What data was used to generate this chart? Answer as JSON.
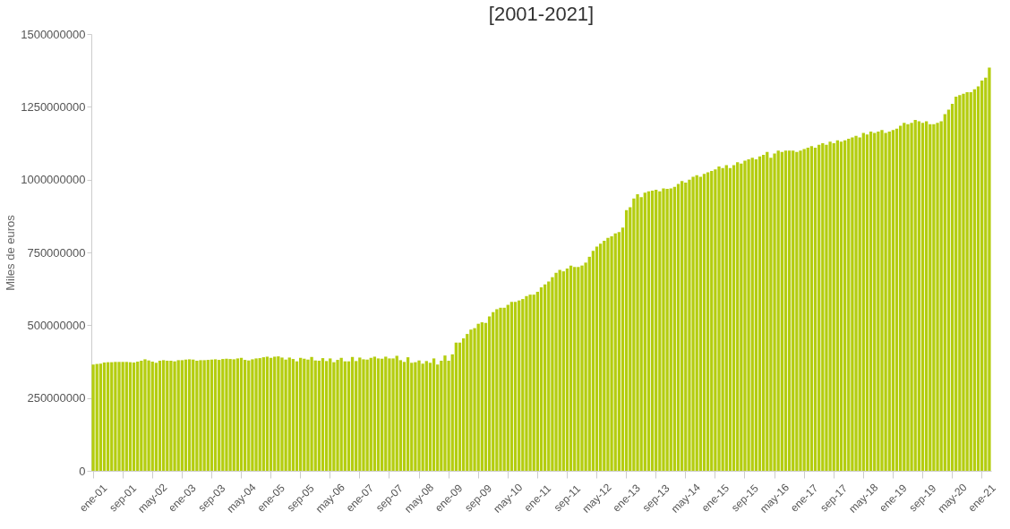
{
  "chart_data": {
    "type": "bar",
    "title": "[2001-2021]",
    "ylabel": "Miles de euros",
    "color": "#b4cd0f",
    "ylim": [
      0,
      1500000000
    ],
    "yticks": [
      0,
      250000000,
      500000000,
      750000000,
      1000000000,
      1250000000,
      1500000000
    ],
    "grid": false,
    "categories": [
      "ene-01",
      null,
      null,
      null,
      null,
      null,
      null,
      null,
      "sep-01",
      null,
      null,
      null,
      null,
      null,
      null,
      null,
      "may-02",
      null,
      null,
      null,
      null,
      null,
      null,
      null,
      "ene-03",
      null,
      null,
      null,
      null,
      null,
      null,
      null,
      "sep-03",
      null,
      null,
      null,
      null,
      null,
      null,
      null,
      "may-04",
      null,
      null,
      null,
      null,
      null,
      null,
      null,
      "ene-05",
      null,
      null,
      null,
      null,
      null,
      null,
      null,
      "sep-05",
      null,
      null,
      null,
      null,
      null,
      null,
      null,
      "may-06",
      null,
      null,
      null,
      null,
      null,
      null,
      null,
      "ene-07",
      null,
      null,
      null,
      null,
      null,
      null,
      null,
      "sep-07",
      null,
      null,
      null,
      null,
      null,
      null,
      null,
      "may-08",
      null,
      null,
      null,
      null,
      null,
      null,
      null,
      "ene-09",
      null,
      null,
      null,
      null,
      null,
      null,
      null,
      "sep-09",
      null,
      null,
      null,
      null,
      null,
      null,
      null,
      "may-10",
      null,
      null,
      null,
      null,
      null,
      null,
      null,
      "ene-11",
      null,
      null,
      null,
      null,
      null,
      null,
      null,
      "sep-11",
      null,
      null,
      null,
      null,
      null,
      null,
      null,
      "may-12",
      null,
      null,
      null,
      null,
      null,
      null,
      null,
      "ene-13",
      null,
      null,
      null,
      null,
      null,
      null,
      null,
      "sep-13",
      null,
      null,
      null,
      null,
      null,
      null,
      null,
      "may-14",
      null,
      null,
      null,
      null,
      null,
      null,
      null,
      "ene-15",
      null,
      null,
      null,
      null,
      null,
      null,
      null,
      "sep-15",
      null,
      null,
      null,
      null,
      null,
      null,
      null,
      "may-16",
      null,
      null,
      null,
      null,
      null,
      null,
      null,
      "ene-17",
      null,
      null,
      null,
      null,
      null,
      null,
      null,
      "sep-17",
      null,
      null,
      null,
      null,
      null,
      null,
      null,
      "may-18",
      null,
      null,
      null,
      null,
      null,
      null,
      null,
      "ene-19",
      null,
      null,
      null,
      null,
      null,
      null,
      null,
      "sep-19",
      null,
      null,
      null,
      null,
      null,
      null,
      null,
      "may-20",
      null,
      null,
      null,
      null,
      null,
      null,
      null,
      "ene-21",
      null,
      null
    ],
    "values": [
      365000000,
      367000000,
      368000000,
      372000000,
      373000000,
      373000000,
      374000000,
      374000000,
      374000000,
      374000000,
      373000000,
      372000000,
      375000000,
      378000000,
      383000000,
      379000000,
      375000000,
      371000000,
      378000000,
      380000000,
      378000000,
      378000000,
      376000000,
      380000000,
      380000000,
      382000000,
      383000000,
      382000000,
      378000000,
      380000000,
      380000000,
      381000000,
      382000000,
      383000000,
      381000000,
      384000000,
      385000000,
      384000000,
      383000000,
      386000000,
      388000000,
      381000000,
      379000000,
      383000000,
      386000000,
      387000000,
      390000000,
      392000000,
      388000000,
      392000000,
      393000000,
      389000000,
      382000000,
      389000000,
      384000000,
      376000000,
      388000000,
      385000000,
      382000000,
      391000000,
      379000000,
      378000000,
      387000000,
      377000000,
      386000000,
      373000000,
      381000000,
      388000000,
      376000000,
      376000000,
      391000000,
      377000000,
      389000000,
      383000000,
      382000000,
      388000000,
      392000000,
      386000000,
      385000000,
      392000000,
      386000000,
      386000000,
      395000000,
      380000000,
      374000000,
      390000000,
      371000000,
      373000000,
      379000000,
      368000000,
      377000000,
      371000000,
      386000000,
      365000000,
      378000000,
      396000000,
      378000000,
      400000000,
      440000000,
      440000000,
      455000000,
      470000000,
      485000000,
      490000000,
      505000000,
      510000000,
      508000000,
      530000000,
      545000000,
      555000000,
      560000000,
      560000000,
      570000000,
      580000000,
      580000000,
      585000000,
      590000000,
      600000000,
      605000000,
      605000000,
      615000000,
      630000000,
      640000000,
      650000000,
      665000000,
      680000000,
      690000000,
      685000000,
      695000000,
      705000000,
      700000000,
      700000000,
      705000000,
      715000000,
      735000000,
      755000000,
      770000000,
      780000000,
      790000000,
      800000000,
      805000000,
      815000000,
      820000000,
      835000000,
      895000000,
      905000000,
      935000000,
      950000000,
      940000000,
      955000000,
      960000000,
      962000000,
      965000000,
      960000000,
      970000000,
      968000000,
      970000000,
      975000000,
      985000000,
      995000000,
      990000000,
      1000000000,
      1010000000,
      1015000000,
      1010000000,
      1020000000,
      1025000000,
      1030000000,
      1035000000,
      1045000000,
      1040000000,
      1050000000,
      1040000000,
      1050000000,
      1060000000,
      1055000000,
      1065000000,
      1070000000,
      1075000000,
      1070000000,
      1080000000,
      1085000000,
      1095000000,
      1075000000,
      1090000000,
      1100000000,
      1095000000,
      1100000000,
      1100000000,
      1100000000,
      1095000000,
      1100000000,
      1105000000,
      1110000000,
      1115000000,
      1110000000,
      1120000000,
      1125000000,
      1120000000,
      1130000000,
      1125000000,
      1135000000,
      1130000000,
      1135000000,
      1140000000,
      1145000000,
      1150000000,
      1145000000,
      1160000000,
      1155000000,
      1165000000,
      1160000000,
      1165000000,
      1170000000,
      1160000000,
      1165000000,
      1170000000,
      1175000000,
      1185000000,
      1195000000,
      1190000000,
      1195000000,
      1205000000,
      1200000000,
      1195000000,
      1200000000,
      1190000000,
      1190000000,
      1195000000,
      1200000000,
      1225000000,
      1240000000,
      1260000000,
      1285000000,
      1290000000,
      1295000000,
      1300000000,
      1300000000,
      1310000000,
      1320000000,
      1340000000,
      1350000000,
      1385000000
    ]
  }
}
